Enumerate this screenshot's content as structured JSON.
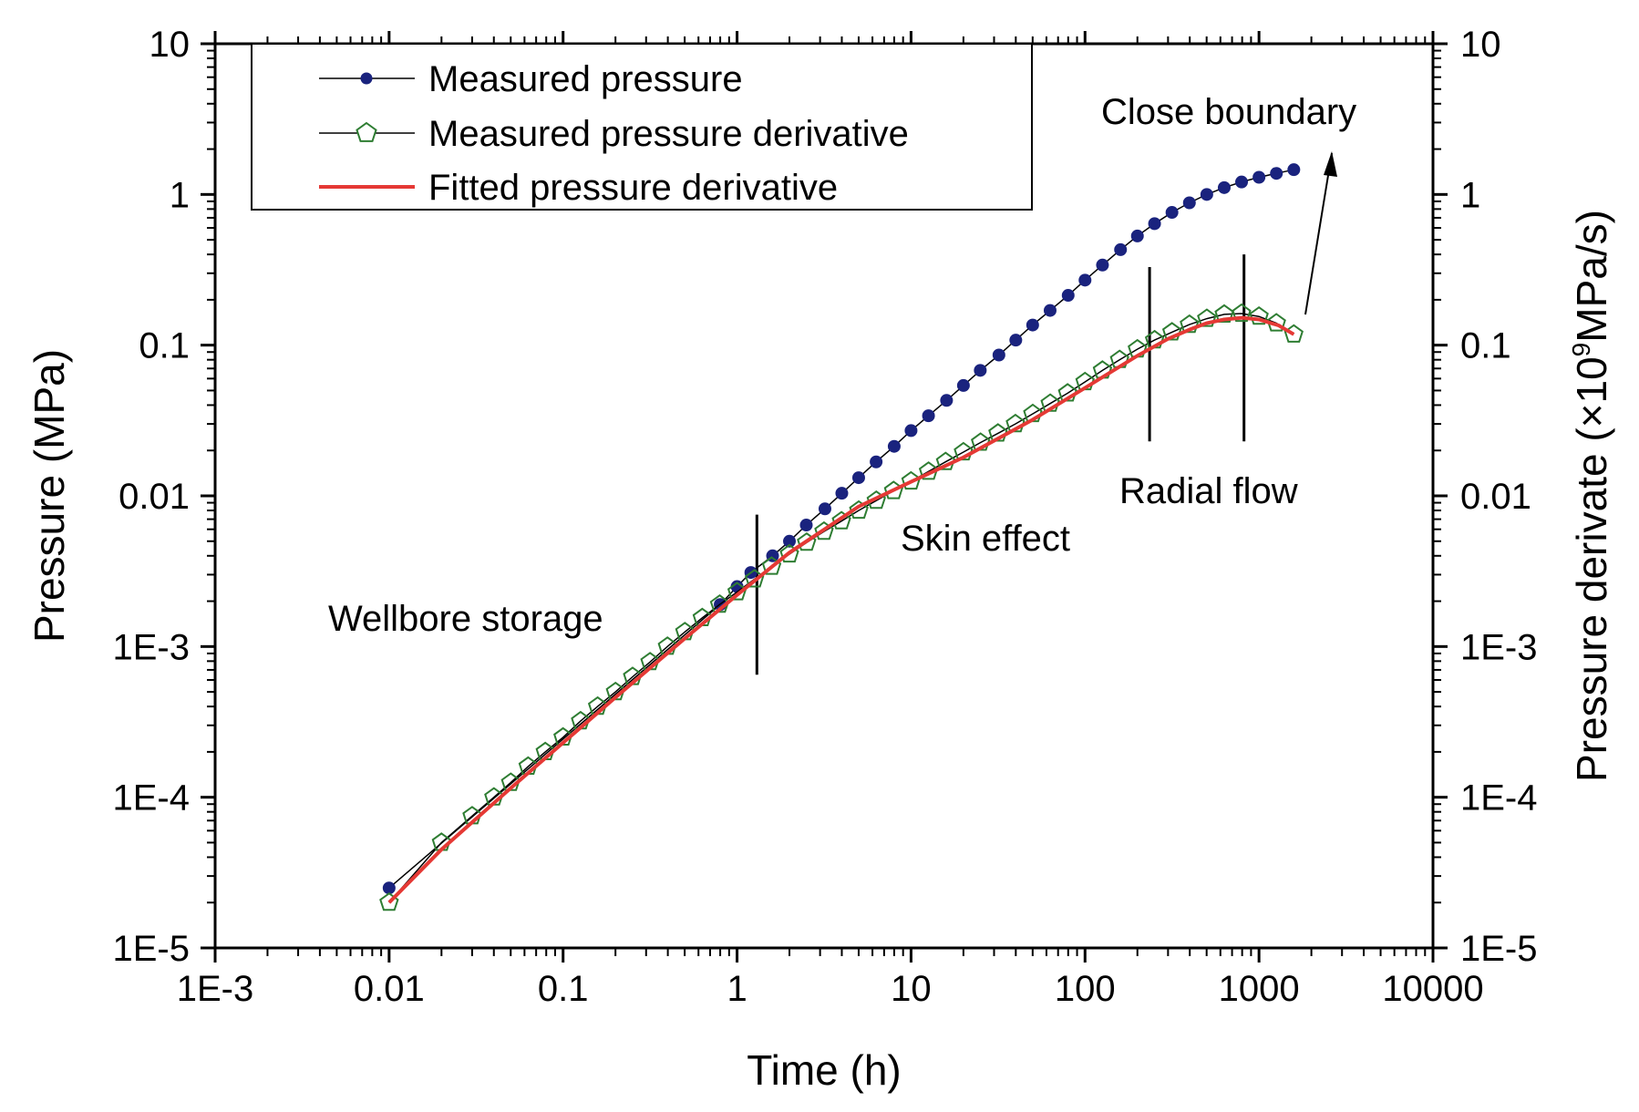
{
  "chart_data": {
    "type": "line",
    "xlabel": "Time (h)",
    "ylabel": "Pressure (MPa)",
    "y2label_main": "Pressure derivate (×10",
    "y2label_exp": "9",
    "y2label_tail": "MPa/s)",
    "xscale": "log",
    "yscale": "log",
    "xlim": [
      0.001,
      10000
    ],
    "ylim": [
      1e-05,
      10
    ],
    "x_ticks": [
      {
        "value": 0.001,
        "label": "1E-3"
      },
      {
        "value": 0.01,
        "label": "0.01"
      },
      {
        "value": 0.1,
        "label": "0.1"
      },
      {
        "value": 1,
        "label": "1"
      },
      {
        "value": 10,
        "label": "10"
      },
      {
        "value": 100,
        "label": "100"
      },
      {
        "value": 1000,
        "label": "1000"
      },
      {
        "value": 10000,
        "label": "10000"
      }
    ],
    "y_ticks": [
      {
        "value": 1e-05,
        "label": "1E-5"
      },
      {
        "value": 0.0001,
        "label": "1E-4"
      },
      {
        "value": 0.001,
        "label": "1E-3"
      },
      {
        "value": 0.01,
        "label": "0.01"
      },
      {
        "value": 0.1,
        "label": "0.1"
      },
      {
        "value": 1,
        "label": "1"
      },
      {
        "value": 10,
        "label": "10"
      }
    ],
    "legend_position": "top-left",
    "series": [
      {
        "name": "Measured pressure",
        "color": "#1a237e",
        "marker": "filled-circle",
        "line": "thin-black",
        "x": [
          0.01,
          0.8,
          1.0,
          1.2,
          1.6,
          2.0,
          2.5,
          3.2,
          4.0,
          5.0,
          6.3,
          8.0,
          10,
          12.6,
          16,
          20,
          25,
          32,
          40,
          50,
          63,
          80,
          100,
          126,
          160,
          200,
          251,
          316,
          398,
          501,
          631,
          794,
          1000,
          1259,
          1585
        ],
        "y": [
          2.5e-05,
          0.0019,
          0.0025,
          0.0031,
          0.004,
          0.005,
          0.0064,
          0.0082,
          0.0104,
          0.0132,
          0.0168,
          0.0213,
          0.0271,
          0.034,
          0.043,
          0.054,
          0.068,
          0.086,
          0.108,
          0.136,
          0.17,
          0.214,
          0.27,
          0.34,
          0.43,
          0.53,
          0.64,
          0.76,
          0.88,
          1.0,
          1.11,
          1.21,
          1.3,
          1.38,
          1.46
        ]
      },
      {
        "name": "Measured pressure derivative",
        "color": "#2e7d32",
        "marker": "open-pentagon",
        "line": "thin-black",
        "x": [
          0.01,
          0.02,
          0.03,
          0.04,
          0.05,
          0.063,
          0.079,
          0.1,
          0.126,
          0.158,
          0.2,
          0.251,
          0.316,
          0.398,
          0.501,
          0.631,
          0.794,
          1.0,
          1.26,
          1.58,
          2.0,
          2.51,
          3.16,
          3.98,
          5.01,
          6.31,
          7.94,
          10,
          12.6,
          15.8,
          20,
          25.1,
          31.6,
          39.8,
          50.1,
          63.1,
          79.4,
          100,
          126,
          158,
          200,
          251,
          316,
          398,
          501,
          631,
          794,
          1000,
          1259,
          1585
        ],
        "y": [
          2e-05,
          5e-05,
          7.5e-05,
          0.0001,
          0.000125,
          0.00016,
          0.0002,
          0.00025,
          0.00032,
          0.0004,
          0.0005,
          0.00063,
          0.00079,
          0.001,
          0.00125,
          0.00155,
          0.0019,
          0.0023,
          0.0028,
          0.0034,
          0.0041,
          0.0049,
          0.0058,
          0.0068,
          0.008,
          0.0093,
          0.0108,
          0.0125,
          0.0145,
          0.0168,
          0.0195,
          0.0226,
          0.026,
          0.03,
          0.035,
          0.041,
          0.048,
          0.057,
          0.068,
          0.08,
          0.094,
          0.108,
          0.122,
          0.137,
          0.15,
          0.16,
          0.162,
          0.155,
          0.14,
          0.118
        ]
      },
      {
        "name": "Fitted pressure derivative",
        "color": "#e53935",
        "marker": "none",
        "line": "solid-thick",
        "x": [
          0.01,
          0.02,
          0.05,
          0.1,
          0.2,
          0.5,
          1.0,
          2.0,
          5.0,
          10,
          20,
          50,
          100,
          200,
          300,
          400,
          500,
          630,
          800,
          1000,
          1300,
          1585
        ],
        "y": [
          2e-05,
          4.5e-05,
          0.000115,
          0.00023,
          0.00046,
          0.00113,
          0.0022,
          0.0042,
          0.0085,
          0.0124,
          0.018,
          0.032,
          0.052,
          0.085,
          0.11,
          0.127,
          0.14,
          0.148,
          0.152,
          0.148,
          0.135,
          0.118
        ]
      }
    ],
    "annotations": [
      {
        "text": "Close boundary"
      },
      {
        "text": "Radial flow"
      },
      {
        "text": "Skin effect"
      },
      {
        "text": "Wellbore storage"
      }
    ],
    "regime_markers_x": [
      1.3,
      235,
      820
    ]
  }
}
